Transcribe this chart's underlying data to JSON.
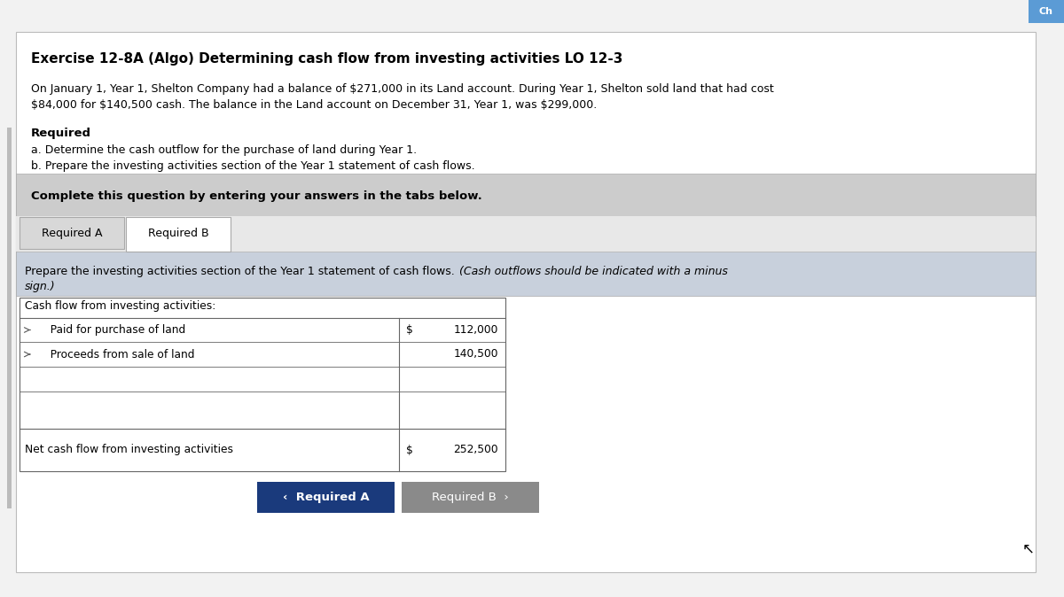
{
  "title": "Exercise 12-8A (Algo) Determining cash flow from investing activities LO 12-3",
  "body_line1": "On January 1, Year 1, Shelton Company had a balance of $271,000 in its Land account. During Year 1, Shelton sold land that had cost",
  "body_line2": "$84,000 for $140,500 cash. The balance in the Land account on December 31, Year 1, was $299,000.",
  "required_label": "Required",
  "req_a": "a. Determine the cash outflow for the purchase of land during Year 1.",
  "req_b": "b. Prepare the investing activities section of the Year 1 statement of cash flows.",
  "complete_text": "Complete this question by entering your answers in the tabs below.",
  "tab_a": "Required A",
  "tab_b": "Required B",
  "instruction_main": "Prepare the investing activities section of the Year 1 statement of cash flows. ",
  "instruction_italic": "(Cash outflows should be indicated with a minus",
  "instruction_line2": "sign.)",
  "table_header": "Cash flow from investing activities:",
  "row1_label": "   Paid for purchase of land",
  "row1_dollar": "$",
  "row1_value": "112,000",
  "row2_label": "   Proceeds from sale of land",
  "row2_value": "140,500",
  "row3_label": "Net cash flow from investing activities",
  "row3_dollar": "$",
  "row3_value": "252,500",
  "btn1_text": "‹  Required A",
  "btn2_text": "Required B  ›",
  "bg_color": "#e8e8e8",
  "page_bg": "#f2f2f2",
  "white": "#ffffff",
  "gray_box_color": "#cccccc",
  "instr_bg": "#c8d0dc",
  "tab_a_bg": "#d8d8d8",
  "tab_b_bg": "#ffffff",
  "btn1_color": "#1a3a7c",
  "btn2_color": "#8a8a8a",
  "corner_tab_color": "#5b9bd5",
  "corner_tab_text": "Ch",
  "border_color": "#999999",
  "table_border": "#666666"
}
